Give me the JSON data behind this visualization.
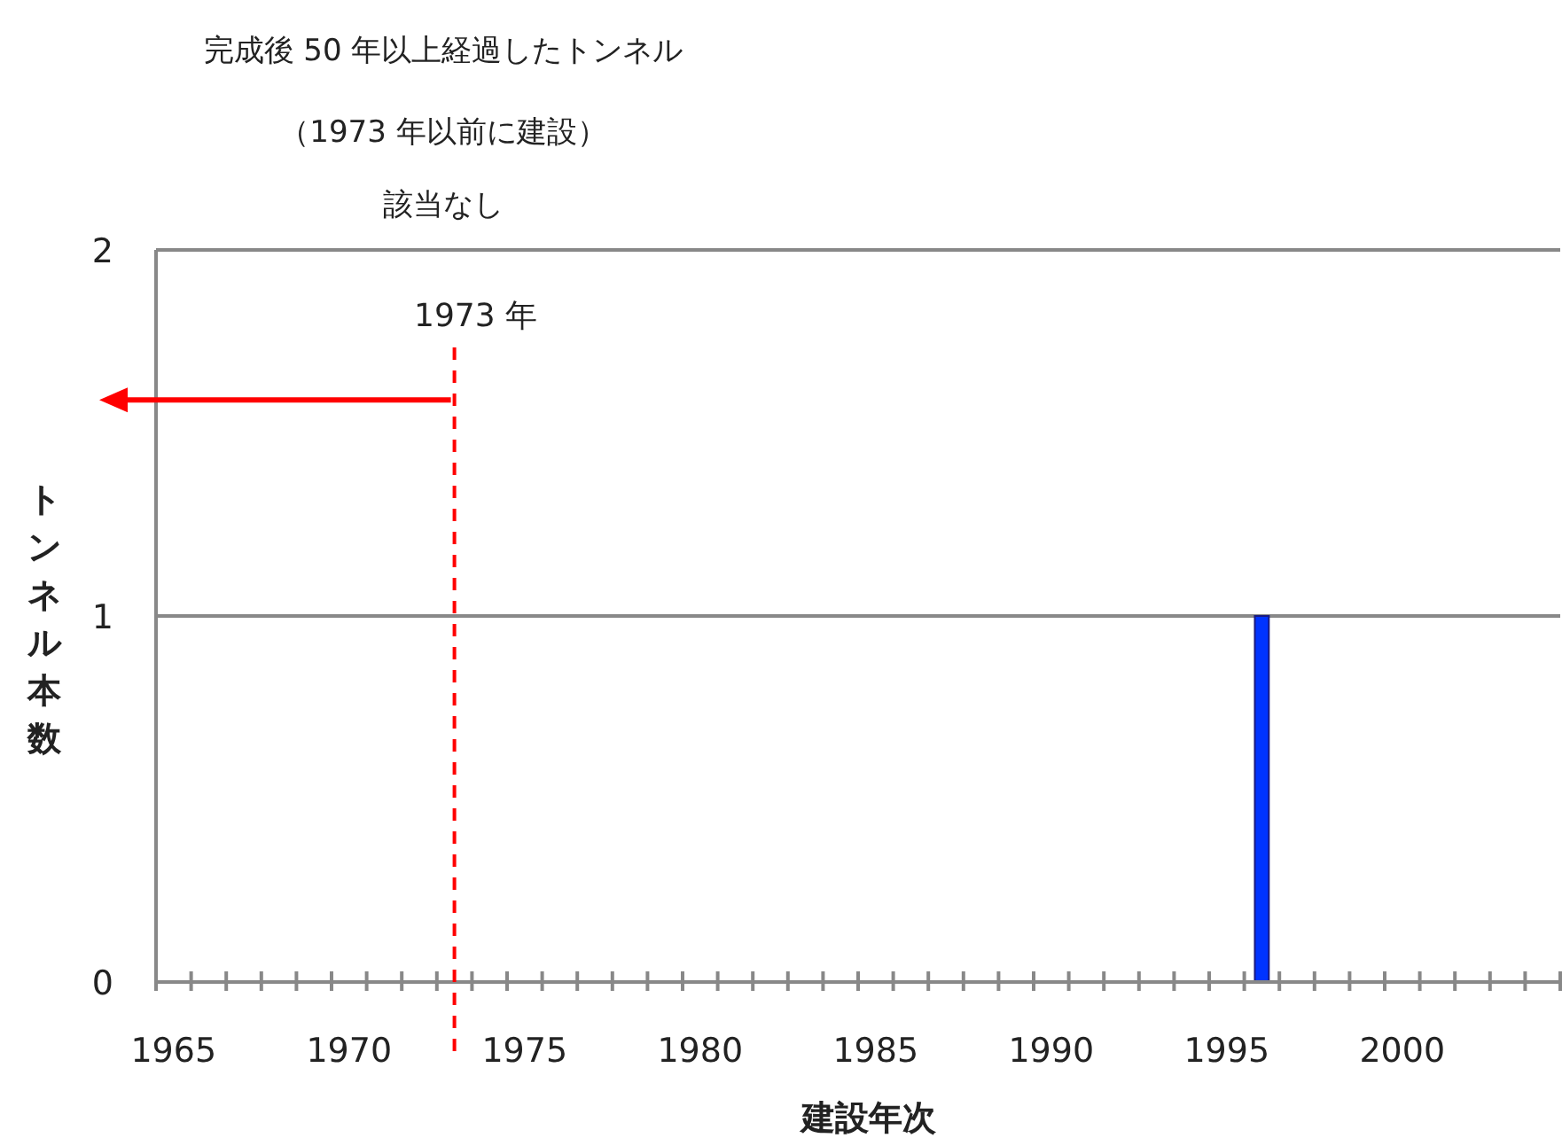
{
  "chart_data": {
    "type": "bar",
    "title": "完成後 50 年以上経過したトンネル",
    "subtitle": "（1973 年以前に建設）",
    "annotations": [
      "該当なし"
    ],
    "xlabel": "建設年次",
    "ylabel": "トンネル本数",
    "x": [
      1996
    ],
    "values": [
      1
    ],
    "color": "#0033ff",
    "xlim": [
      1964.5,
      2004.5
    ],
    "xticks": [
      {
        "value": 1964.5,
        "label": null
      },
      1965,
      {
        "value": 1965.5,
        "label": null
      },
      {
        "value": 1966.5,
        "label": null
      },
      {
        "value": 1967.5,
        "label": null
      },
      {
        "value": 1968.5,
        "label": null
      },
      {
        "value": 1969.5,
        "label": null
      },
      1970,
      {
        "value": 1970.5,
        "label": null
      },
      {
        "value": 1971.5,
        "label": null
      },
      {
        "value": 1972.5,
        "label": null
      },
      {
        "value": 1973.5,
        "label": null
      },
      {
        "value": 1974.5,
        "label": null
      },
      1975,
      {
        "value": 1975.5,
        "label": null
      },
      {
        "value": 1976.5,
        "label": null
      },
      {
        "value": 1977.5,
        "label": null
      },
      {
        "value": 1978.5,
        "label": null
      },
      {
        "value": 1979.5,
        "label": null
      },
      1980,
      {
        "value": 1980.5,
        "label": null
      },
      {
        "value": 1981.5,
        "label": null
      },
      {
        "value": 1982.5,
        "label": null
      },
      {
        "value": 1983.5,
        "label": null
      },
      {
        "value": 1984.5,
        "label": null
      },
      1985,
      {
        "value": 1985.5,
        "label": null
      },
      {
        "value": 1986.5,
        "label": null
      },
      {
        "value": 1987.5,
        "label": null
      },
      {
        "value": 1988.5,
        "label": null
      },
      {
        "value": 1989.5,
        "label": null
      },
      1990,
      {
        "value": 1990.5,
        "label": null
      },
      {
        "value": 1991.5,
        "label": null
      },
      {
        "value": 1992.5,
        "label": null
      },
      {
        "value": 1993.5,
        "label": null
      },
      {
        "value": 1994.5,
        "label": null
      },
      1995,
      {
        "value": 1995.5,
        "label": null
      },
      {
        "value": 1996.5,
        "label": null
      },
      {
        "value": 1997.5,
        "label": null
      },
      {
        "value": 1998.5,
        "label": null
      },
      {
        "value": 1999.5,
        "label": null
      },
      2000,
      {
        "value": 2000.5,
        "label": null
      },
      {
        "value": 2001.5,
        "label": null
      },
      {
        "value": 2002.5,
        "label": null
      },
      {
        "value": 2003.5,
        "label": null
      },
      {
        "value": 2004.5,
        "label": null
      }
    ],
    "ylim": [
      0,
      2
    ],
    "yticks": [
      0,
      1,
      2
    ],
    "grid": "y",
    "ref_lines": [
      {
        "axis": "x",
        "value": 1973,
        "label": "1973 年",
        "color": "#ff0000",
        "line_style": "dashed"
      }
    ]
  }
}
